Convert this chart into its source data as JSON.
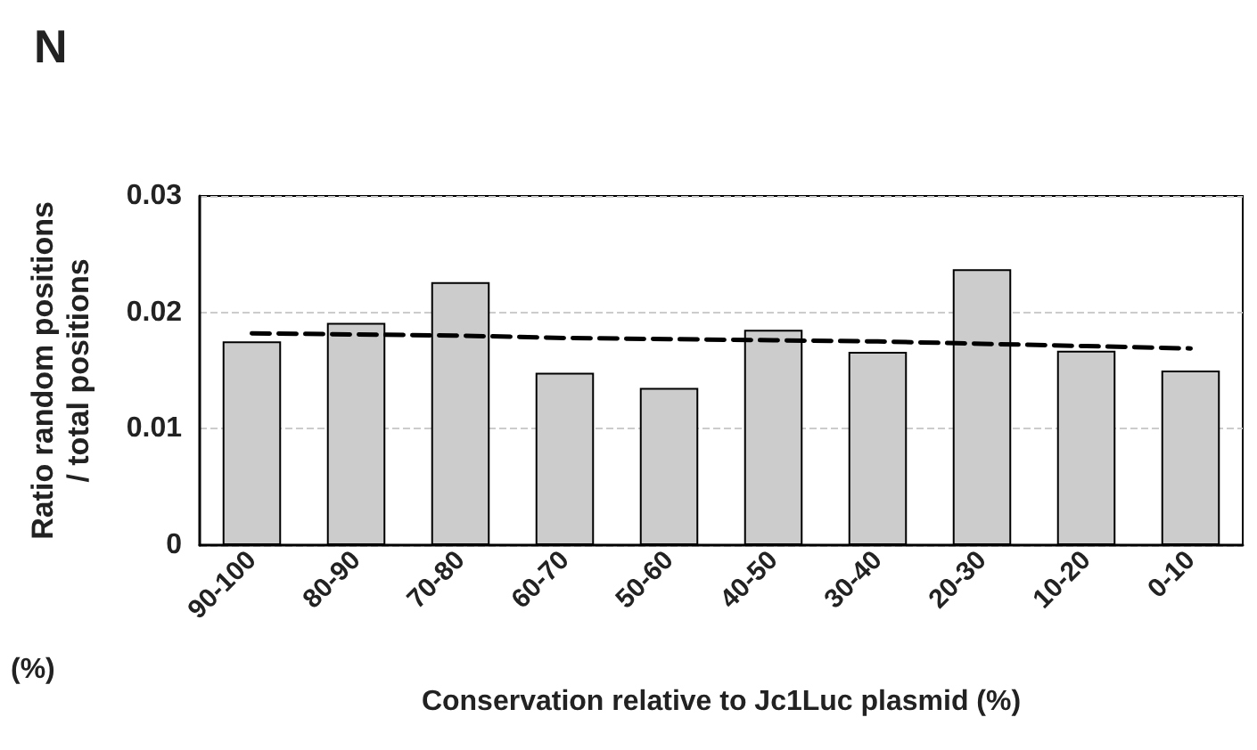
{
  "chart_data": {
    "type": "bar",
    "title": "N",
    "xlabel": "Conservation relative to Jc1Luc plasmid (%)",
    "ylabel": "Ratio random positions\n/ total positions",
    "categories": [
      "90-100",
      "80-90",
      "70-80",
      "60-70",
      "50-60",
      "40-50",
      "30-40",
      "20-30",
      "10-20",
      "0-10"
    ],
    "series": [
      {
        "color": "#cccccc",
        "values": [
          0.0175,
          0.0191,
          0.0226,
          0.0148,
          0.0135,
          0.0185,
          0.0166,
          0.0237,
          0.0167,
          0.015
        ]
      },
      {
        "type": "line",
        "color": "#000000",
        "line_style": "dashed",
        "x": [
          "90-100",
          "80-90",
          "70-80",
          "60-70",
          "50-60",
          "40-50",
          "30-40",
          "20-30",
          "10-20",
          "0-10"
        ],
        "values": [
          0.0182,
          0.0181,
          0.018,
          0.0178,
          0.0177,
          0.0176,
          0.0175,
          0.0173,
          0.0171,
          0.0169
        ]
      }
    ],
    "ylim": [
      0,
      0.03
    ],
    "yticks": [
      0,
      0.01,
      0.02,
      0.03
    ],
    "grid": "y",
    "marker": "none",
    "annotations": [
      "(%)"
    ]
  }
}
